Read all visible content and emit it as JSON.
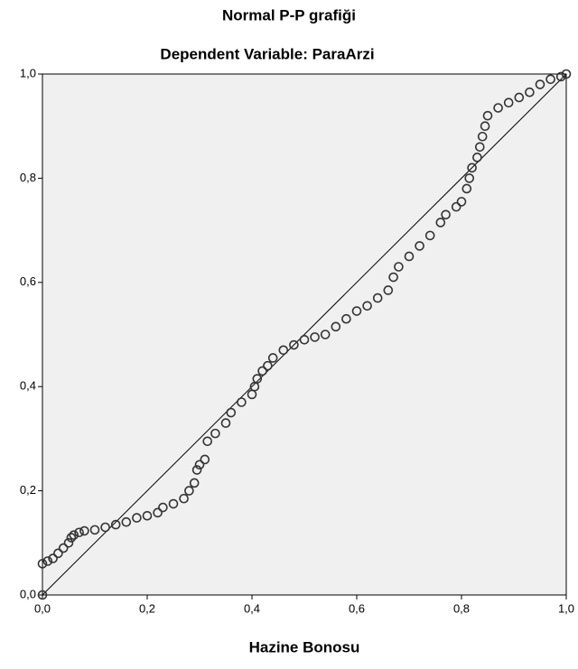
{
  "chart_data": {
    "type": "scatter",
    "title": "Normal P-P grafiği",
    "subtitle": "Dependent Variable: ParaArzi",
    "x_label": "Hazine Bonosu",
    "xlim": [
      0,
      1
    ],
    "ylim": [
      0,
      1
    ],
    "xticks": [
      {
        "value": 0,
        "label": "0,0"
      },
      {
        "value": 0.2,
        "label": "0,2"
      },
      {
        "value": 0.4,
        "label": "0,4"
      },
      {
        "value": 0.6,
        "label": "0,6"
      },
      {
        "value": 0.8,
        "label": "0,8"
      },
      {
        "value": 1,
        "label": "1,0"
      }
    ],
    "yticks": [
      {
        "value": 0,
        "label": "0,0"
      },
      {
        "value": 0.2,
        "label": "0,2"
      },
      {
        "value": 0.4,
        "label": "0,4"
      },
      {
        "value": 0.6,
        "label": "0,6"
      },
      {
        "value": 0.8,
        "label": "0,8"
      },
      {
        "value": 1,
        "label": "1,0"
      }
    ],
    "color": "#333333",
    "x": [
      0.0,
      0.0,
      0.01,
      0.02,
      0.03,
      0.04,
      0.05,
      0.055,
      0.06,
      0.07,
      0.08,
      0.1,
      0.12,
      0.14,
      0.16,
      0.18,
      0.2,
      0.22,
      0.23,
      0.25,
      0.27,
      0.28,
      0.29,
      0.295,
      0.3,
      0.31,
      0.315,
      0.33,
      0.35,
      0.36,
      0.38,
      0.4,
      0.405,
      0.41,
      0.42,
      0.43,
      0.44,
      0.46,
      0.48,
      0.5,
      0.52,
      0.54,
      0.56,
      0.58,
      0.6,
      0.62,
      0.64,
      0.66,
      0.67,
      0.68,
      0.7,
      0.72,
      0.74,
      0.76,
      0.77,
      0.79,
      0.8,
      0.81,
      0.815,
      0.82,
      0.83,
      0.835,
      0.84,
      0.845,
      0.85,
      0.87,
      0.89,
      0.91,
      0.93,
      0.95,
      0.97,
      0.99,
      1.0
    ],
    "values": [
      0.0,
      0.06,
      0.065,
      0.07,
      0.08,
      0.09,
      0.1,
      0.11,
      0.115,
      0.12,
      0.123,
      0.125,
      0.13,
      0.135,
      0.14,
      0.148,
      0.152,
      0.158,
      0.168,
      0.175,
      0.185,
      0.2,
      0.215,
      0.24,
      0.25,
      0.26,
      0.295,
      0.31,
      0.33,
      0.35,
      0.37,
      0.385,
      0.4,
      0.415,
      0.43,
      0.44,
      0.455,
      0.47,
      0.48,
      0.49,
      0.495,
      0.5,
      0.515,
      0.53,
      0.545,
      0.555,
      0.57,
      0.585,
      0.61,
      0.63,
      0.65,
      0.67,
      0.69,
      0.715,
      0.73,
      0.745,
      0.755,
      0.78,
      0.8,
      0.82,
      0.84,
      0.86,
      0.88,
      0.9,
      0.92,
      0.935,
      0.945,
      0.955,
      0.965,
      0.98,
      0.99,
      0.995,
      1.0
    ]
  }
}
